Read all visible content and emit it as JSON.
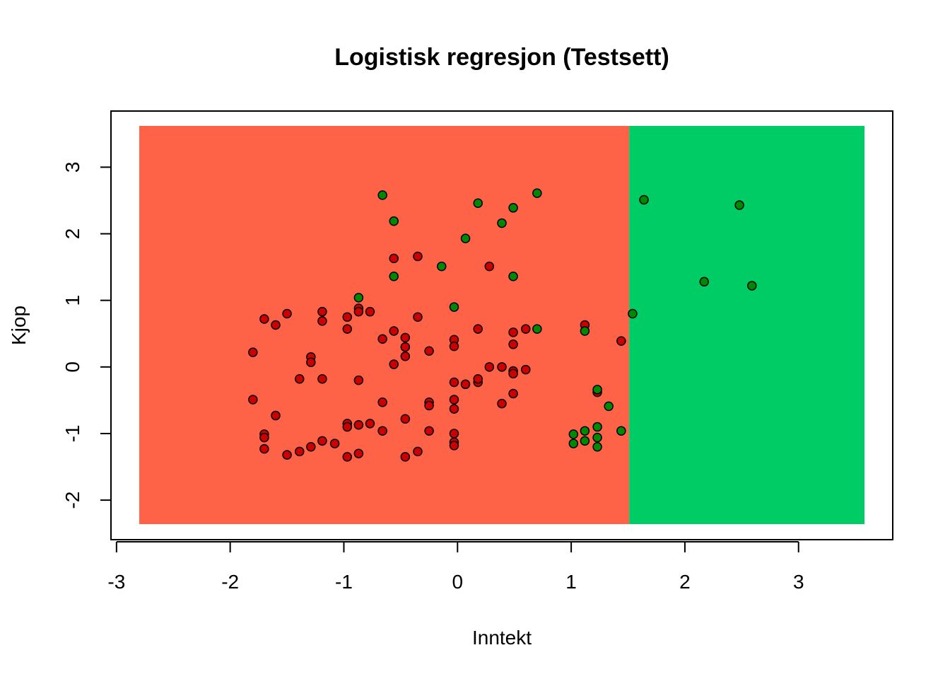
{
  "chart_data": {
    "type": "scatter",
    "title": "Logistisk regresjon (Testsett)",
    "xlabel": "Inntekt",
    "ylabel": "Kjop",
    "xlim": [
      -2.8,
      3.58
    ],
    "ylim": [
      -2.36,
      3.62
    ],
    "x_ticks": [
      -3,
      -2,
      -1,
      0,
      1,
      2,
      3
    ],
    "y_ticks": [
      -2,
      -1,
      0,
      1,
      2,
      3
    ],
    "x_tick_labels": [
      "-3",
      "-2",
      "-1",
      "0",
      "1",
      "2",
      "3"
    ],
    "y_tick_labels": [
      "-2",
      "-1",
      "0",
      "1",
      "2",
      "3"
    ],
    "grid": false,
    "regions": [
      {
        "class": "0",
        "x_range": [
          -2.8,
          1.51
        ],
        "y_range": [
          -2.36,
          3.62
        ],
        "color": "#FF6347"
      },
      {
        "class": "1",
        "x_range": [
          1.51,
          3.58
        ],
        "y_range": [
          -2.36,
          3.62
        ],
        "color": "#00CC66"
      }
    ],
    "point_colors": {
      "0": "#CC0000",
      "1": "#008800"
    },
    "points_class0": [
      [
        -1.8,
        0.22
      ],
      [
        -1.7,
        0.72
      ],
      [
        -1.6,
        0.63
      ],
      [
        -1.5,
        0.8
      ],
      [
        -1.19,
        0.83
      ],
      [
        -1.19,
        0.69
      ],
      [
        -0.97,
        0.75
      ],
      [
        -0.97,
        0.57
      ],
      [
        -0.87,
        0.88
      ],
      [
        -0.87,
        0.83
      ],
      [
        -0.77,
        0.83
      ],
      [
        -1.29,
        0.15
      ],
      [
        -1.29,
        0.07
      ],
      [
        -1.39,
        -0.18
      ],
      [
        -1.19,
        -0.18
      ],
      [
        -0.87,
        -0.2
      ],
      [
        -0.66,
        0.42
      ],
      [
        -0.56,
        0.54
      ],
      [
        -0.46,
        0.44
      ],
      [
        -0.46,
        0.3
      ],
      [
        -0.46,
        0.16
      ],
      [
        -0.56,
        0.04
      ],
      [
        -0.25,
        0.24
      ],
      [
        -0.35,
        0.75
      ],
      [
        -0.56,
        1.63
      ],
      [
        -0.35,
        1.66
      ],
      [
        0.28,
        1.51
      ],
      [
        -0.03,
        0.41
      ],
      [
        -0.03,
        0.31
      ],
      [
        0.18,
        0.57
      ],
      [
        -0.03,
        -0.23
      ],
      [
        0.07,
        -0.26
      ],
      [
        0.18,
        -0.23
      ],
      [
        0.18,
        -0.18
      ],
      [
        0.28,
        0.0
      ],
      [
        0.39,
        0.0
      ],
      [
        0.49,
        -0.06
      ],
      [
        0.49,
        -0.1
      ],
      [
        0.6,
        -0.04
      ],
      [
        0.49,
        0.34
      ],
      [
        0.49,
        0.52
      ],
      [
        0.6,
        0.57
      ],
      [
        1.12,
        0.63
      ],
      [
        1.44,
        0.39
      ],
      [
        -1.8,
        -0.49
      ],
      [
        -1.6,
        -0.73
      ],
      [
        -1.7,
        -1.01
      ],
      [
        -1.7,
        -1.06
      ],
      [
        -1.7,
        -1.23
      ],
      [
        -1.5,
        -1.32
      ],
      [
        -1.39,
        -1.27
      ],
      [
        -1.29,
        -1.2
      ],
      [
        -1.19,
        -1.11
      ],
      [
        -1.08,
        -1.15
      ],
      [
        -0.97,
        -0.85
      ],
      [
        -0.97,
        -0.9
      ],
      [
        -0.87,
        -0.87
      ],
      [
        -0.77,
        -0.85
      ],
      [
        -0.97,
        -1.35
      ],
      [
        -0.87,
        -1.3
      ],
      [
        -0.66,
        -0.53
      ],
      [
        -0.66,
        -0.96
      ],
      [
        -0.46,
        -0.78
      ],
      [
        -0.46,
        -1.35
      ],
      [
        -0.35,
        -1.27
      ],
      [
        -0.25,
        -0.53
      ],
      [
        -0.25,
        -0.58
      ],
      [
        -0.25,
        -0.96
      ],
      [
        -0.03,
        -0.49
      ],
      [
        -0.03,
        -0.63
      ],
      [
        -0.03,
        -1.0
      ],
      [
        -0.03,
        -1.13
      ],
      [
        -0.03,
        -1.18
      ],
      [
        0.39,
        -0.55
      ],
      [
        0.49,
        -0.4
      ],
      [
        1.23,
        -0.38
      ]
    ],
    "points_class1": [
      [
        -0.66,
        2.58
      ],
      [
        0.7,
        2.61
      ],
      [
        0.18,
        2.46
      ],
      [
        0.49,
        2.39
      ],
      [
        -0.56,
        2.19
      ],
      [
        0.39,
        2.16
      ],
      [
        0.07,
        1.93
      ],
      [
        -0.14,
        1.51
      ],
      [
        -0.56,
        1.36
      ],
      [
        0.49,
        1.36
      ],
      [
        -0.87,
        1.04
      ],
      [
        -0.03,
        0.9
      ],
      [
        0.7,
        0.57
      ],
      [
        1.12,
        0.54
      ],
      [
        1.23,
        -0.34
      ],
      [
        1.33,
        -0.59
      ],
      [
        1.02,
        -1.01
      ],
      [
        1.02,
        -1.15
      ],
      [
        1.12,
        -0.96
      ],
      [
        1.12,
        -1.11
      ],
      [
        1.23,
        -0.9
      ],
      [
        1.23,
        -1.06
      ],
      [
        1.23,
        -1.2
      ],
      [
        1.44,
        -0.96
      ],
      [
        1.64,
        2.51
      ],
      [
        2.48,
        2.43
      ],
      [
        2.17,
        1.28
      ],
      [
        2.59,
        1.22
      ],
      [
        1.54,
        0.8
      ]
    ]
  }
}
